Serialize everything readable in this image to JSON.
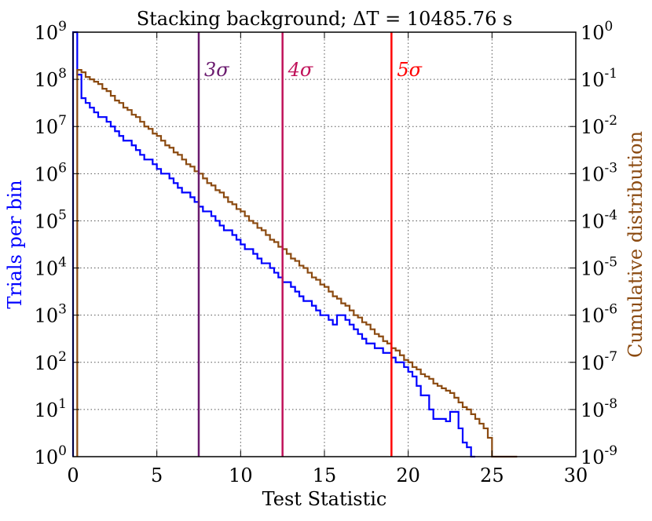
{
  "chart_data": {
    "type": "step-histogram",
    "title": "Stacking background; ΔT = 10485.76 s",
    "xlabel": "Test Statistic",
    "ylabel_left": "Trials per bin",
    "ylabel_right": "Cumulative distribution",
    "xlim": [
      0,
      30
    ],
    "ylim_left_log10": [
      0,
      9
    ],
    "ylim_right_log10": [
      -9,
      0
    ],
    "log_scale_y": true,
    "grid": true,
    "x_ticks": [
      "0",
      "5",
      "10",
      "15",
      "20",
      "25",
      "30"
    ],
    "x_tick_values": [
      0,
      5,
      10,
      15,
      20,
      25,
      30
    ],
    "y_left_ticks": [
      {
        "base": "10",
        "exp": "0"
      },
      {
        "base": "10",
        "exp": "1"
      },
      {
        "base": "10",
        "exp": "2"
      },
      {
        "base": "10",
        "exp": "3"
      },
      {
        "base": "10",
        "exp": "4"
      },
      {
        "base": "10",
        "exp": "5"
      },
      {
        "base": "10",
        "exp": "6"
      },
      {
        "base": "10",
        "exp": "7"
      },
      {
        "base": "10",
        "exp": "8"
      },
      {
        "base": "10",
        "exp": "9"
      }
    ],
    "y_right_ticks": [
      {
        "base": "10",
        "exp": "-9"
      },
      {
        "base": "10",
        "exp": "-8"
      },
      {
        "base": "10",
        "exp": "-7"
      },
      {
        "base": "10",
        "exp": "-6"
      },
      {
        "base": "10",
        "exp": "-5"
      },
      {
        "base": "10",
        "exp": "-4"
      },
      {
        "base": "10",
        "exp": "-3"
      },
      {
        "base": "10",
        "exp": "-2"
      },
      {
        "base": "10",
        "exp": "-1"
      },
      {
        "base": "10",
        "exp": "0"
      }
    ],
    "sigma_lines": [
      {
        "label": "3σ",
        "x": 7.5,
        "color": "#6a1a6e"
      },
      {
        "label": "4σ",
        "x": 12.5,
        "color": "#c0125a"
      },
      {
        "label": "5σ",
        "x": 19.0,
        "color": "#ff0000"
      }
    ],
    "series": [
      {
        "axis": "left",
        "color": "#0000ff",
        "bin_edges": [
          0,
          0.25,
          0.5,
          0.75,
          1.0,
          1.25,
          1.5,
          1.75,
          2.0,
          2.25,
          2.5,
          2.75,
          3.0,
          3.25,
          3.5,
          3.75,
          4.0,
          4.25,
          4.5,
          4.75,
          5.0,
          5.25,
          5.5,
          5.75,
          6.0,
          6.25,
          6.5,
          6.75,
          7.0,
          7.25,
          7.5,
          7.75,
          8.0,
          8.25,
          8.5,
          8.75,
          9.0,
          9.25,
          9.5,
          9.75,
          10.0,
          10.25,
          10.5,
          10.75,
          11.0,
          11.25,
          11.5,
          11.75,
          12.0,
          12.25,
          12.5,
          12.75,
          13.0,
          13.25,
          13.5,
          13.75,
          14.0,
          14.25,
          14.5,
          14.75,
          15.0,
          15.25,
          15.5,
          15.75,
          16.0,
          16.25,
          16.5,
          16.75,
          17.0,
          17.25,
          17.5,
          17.75,
          18.0,
          18.25,
          18.5,
          18.75,
          19.0,
          19.25,
          19.5,
          19.75,
          20.0,
          20.25,
          20.5,
          20.75,
          21.0,
          21.25,
          21.5,
          21.75,
          22.0,
          22.25,
          22.5,
          22.75,
          23.0,
          23.25,
          23.5,
          23.75,
          24.0
        ],
        "log10_counts": [
          9.0,
          8.1,
          7.6,
          7.5,
          7.4,
          7.3,
          7.2,
          7.2,
          7.1,
          7.0,
          6.9,
          6.8,
          6.7,
          6.7,
          6.6,
          6.5,
          6.4,
          6.3,
          6.3,
          6.2,
          6.1,
          6.0,
          6.0,
          5.9,
          5.8,
          5.7,
          5.6,
          5.6,
          5.5,
          5.4,
          5.3,
          5.2,
          5.2,
          5.1,
          5.0,
          4.9,
          4.8,
          4.8,
          4.7,
          4.6,
          4.5,
          4.4,
          4.4,
          4.3,
          4.2,
          4.1,
          4.1,
          4.0,
          3.9,
          3.8,
          3.7,
          3.7,
          3.6,
          3.5,
          3.4,
          3.3,
          3.3,
          3.2,
          3.1,
          3.0,
          3.0,
          2.9,
          2.8,
          3.0,
          3.0,
          2.9,
          2.8,
          2.7,
          2.6,
          2.5,
          2.4,
          2.4,
          2.3,
          2.3,
          2.2,
          2.2,
          2.1,
          2.0,
          2.0,
          1.9,
          1.8,
          1.7,
          1.5,
          1.3,
          1.3,
          1.0,
          0.8,
          0.8,
          0.8,
          0.75,
          0.95,
          0.95,
          0.6,
          0.3,
          0.2,
          0.0
        ]
      },
      {
        "axis": "right",
        "color": "#8b4a10",
        "bin_edges": [
          0.25,
          0.5,
          0.75,
          1.0,
          1.25,
          1.5,
          1.75,
          2.0,
          2.25,
          2.5,
          2.75,
          3.0,
          3.25,
          3.5,
          3.75,
          4.0,
          4.25,
          4.5,
          4.75,
          5.0,
          5.25,
          5.5,
          5.75,
          6.0,
          6.25,
          6.5,
          6.75,
          7.0,
          7.25,
          7.5,
          7.75,
          8.0,
          8.25,
          8.5,
          8.75,
          9.0,
          9.25,
          9.5,
          9.75,
          10.0,
          10.25,
          10.5,
          10.75,
          11.0,
          11.25,
          11.5,
          11.75,
          12.0,
          12.25,
          12.5,
          12.75,
          13.0,
          13.25,
          13.5,
          13.75,
          14.0,
          14.25,
          14.5,
          14.75,
          15.0,
          15.25,
          15.5,
          15.75,
          16.0,
          16.25,
          16.5,
          16.75,
          17.0,
          17.25,
          17.5,
          17.75,
          18.0,
          18.25,
          18.5,
          18.75,
          19.0,
          19.25,
          19.5,
          19.75,
          20.0,
          20.25,
          20.5,
          20.75,
          21.0,
          21.25,
          21.5,
          21.75,
          22.0,
          22.25,
          22.5,
          22.75,
          23.0,
          23.25,
          23.5,
          23.75,
          24.0,
          24.25,
          24.5,
          24.75,
          25.0,
          26.2
        ],
        "log10_values": [
          -0.8,
          -0.85,
          -0.95,
          -1.0,
          -1.05,
          -1.1,
          -1.2,
          -1.25,
          -1.35,
          -1.45,
          -1.5,
          -1.6,
          -1.65,
          -1.75,
          -1.8,
          -1.9,
          -2.0,
          -2.05,
          -2.15,
          -2.2,
          -2.3,
          -2.4,
          -2.45,
          -2.55,
          -2.6,
          -2.7,
          -2.8,
          -2.85,
          -2.95,
          -3.0,
          -3.1,
          -3.2,
          -3.25,
          -3.35,
          -3.4,
          -3.5,
          -3.6,
          -3.65,
          -3.75,
          -3.8,
          -3.9,
          -4.0,
          -4.05,
          -4.15,
          -4.2,
          -4.3,
          -4.4,
          -4.45,
          -4.55,
          -4.6,
          -4.7,
          -4.8,
          -4.85,
          -4.95,
          -5.0,
          -5.1,
          -5.2,
          -5.25,
          -5.35,
          -5.4,
          -5.5,
          -5.6,
          -5.65,
          -5.75,
          -5.8,
          -5.9,
          -6.0,
          -6.05,
          -6.15,
          -6.2,
          -6.3,
          -6.4,
          -6.45,
          -6.55,
          -6.6,
          -6.7,
          -6.75,
          -6.85,
          -6.95,
          -7.0,
          -7.1,
          -7.15,
          -7.25,
          -7.3,
          -7.35,
          -7.45,
          -7.5,
          -7.55,
          -7.6,
          -7.65,
          -7.75,
          -7.85,
          -7.95,
          -8.0,
          -8.1,
          -8.2,
          -8.3,
          -8.4,
          -8.6,
          -9.0
        ]
      }
    ]
  }
}
